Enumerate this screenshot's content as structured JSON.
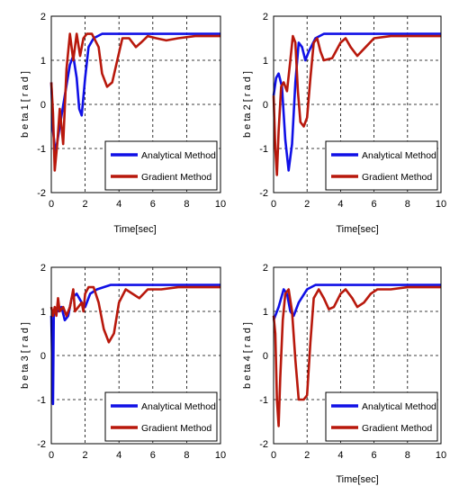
{
  "colors": {
    "analytical": "#1010e6",
    "gradient": "#b8180c",
    "grid": "#000000",
    "background": "#ffffff"
  },
  "legend": [
    "Analytical Method",
    "Gradient Method"
  ],
  "chart_data": [
    {
      "type": "line",
      "xlabel": "Time[sec]",
      "ylabel": "b e ta 1 [ r a d ]",
      "xlim": [
        0,
        10
      ],
      "ylim": [
        -2,
        2
      ],
      "xticks": [
        "0",
        "2",
        "4",
        "6",
        "8",
        "10"
      ],
      "yticks": [
        "2",
        "1",
        "0",
        "-1",
        "-2"
      ],
      "grid": true,
      "legend_placement": "lower-right",
      "series": [
        {
          "name": "Analytical Method",
          "points": [
            [
              0,
              0.5
            ],
            [
              0.1,
              -0.6
            ],
            [
              0.25,
              -1.1
            ],
            [
              0.5,
              -0.5
            ],
            [
              0.8,
              0.2
            ],
            [
              1.1,
              0.9
            ],
            [
              1.3,
              1.1
            ],
            [
              1.5,
              0.6
            ],
            [
              1.65,
              -0.1
            ],
            [
              1.8,
              -0.25
            ],
            [
              2.0,
              0.6
            ],
            [
              2.2,
              1.3
            ],
            [
              2.5,
              1.5
            ],
            [
              3.0,
              1.6
            ],
            [
              4,
              1.6
            ],
            [
              6,
              1.6
            ],
            [
              10,
              1.6
            ]
          ]
        },
        {
          "name": "Gradient Method",
          "points": [
            [
              0,
              0.5
            ],
            [
              0.1,
              -0.2
            ],
            [
              0.2,
              -1.5
            ],
            [
              0.35,
              -0.9
            ],
            [
              0.5,
              -0.1
            ],
            [
              0.7,
              -0.9
            ],
            [
              0.9,
              0.8
            ],
            [
              1.1,
              1.6
            ],
            [
              1.3,
              1.0
            ],
            [
              1.5,
              1.6
            ],
            [
              1.7,
              1.1
            ],
            [
              1.9,
              1.5
            ],
            [
              2.1,
              1.6
            ],
            [
              2.4,
              1.6
            ],
            [
              2.8,
              1.3
            ],
            [
              3.0,
              0.7
            ],
            [
              3.3,
              0.4
            ],
            [
              3.6,
              0.5
            ],
            [
              3.9,
              1.0
            ],
            [
              4.2,
              1.5
            ],
            [
              4.6,
              1.5
            ],
            [
              5.0,
              1.3
            ],
            [
              5.3,
              1.4
            ],
            [
              5.7,
              1.55
            ],
            [
              6.2,
              1.5
            ],
            [
              6.8,
              1.45
            ],
            [
              7.5,
              1.5
            ],
            [
              8.5,
              1.55
            ],
            [
              10,
              1.55
            ]
          ]
        }
      ]
    },
    {
      "type": "line",
      "xlabel": "Time[sec]",
      "ylabel": "b e ta 2 [ r a d ]",
      "xlim": [
        0,
        10
      ],
      "ylim": [
        -2,
        2
      ],
      "xticks": [
        "0",
        "2",
        "4",
        "6",
        "8",
        "10"
      ],
      "yticks": [
        "2",
        "1",
        "0",
        "-1",
        "-2"
      ],
      "grid": true,
      "legend_placement": "lower-right",
      "series": [
        {
          "name": "Analytical Method",
          "points": [
            [
              0,
              0.2
            ],
            [
              0.15,
              0.6
            ],
            [
              0.3,
              0.7
            ],
            [
              0.5,
              0.4
            ],
            [
              0.7,
              -0.8
            ],
            [
              0.9,
              -1.5
            ],
            [
              1.1,
              -0.9
            ],
            [
              1.3,
              0.5
            ],
            [
              1.5,
              1.4
            ],
            [
              1.7,
              1.3
            ],
            [
              1.9,
              1.0
            ],
            [
              2.1,
              1.2
            ],
            [
              2.5,
              1.5
            ],
            [
              3,
              1.6
            ],
            [
              4,
              1.6
            ],
            [
              10,
              1.6
            ]
          ]
        },
        {
          "name": "Gradient Method",
          "points": [
            [
              0,
              0.2
            ],
            [
              0.1,
              -1.0
            ],
            [
              0.2,
              -1.6
            ],
            [
              0.3,
              -0.6
            ],
            [
              0.45,
              0.4
            ],
            [
              0.6,
              0.5
            ],
            [
              0.8,
              0.3
            ],
            [
              1.0,
              1.0
            ],
            [
              1.15,
              1.55
            ],
            [
              1.3,
              1.4
            ],
            [
              1.45,
              0.3
            ],
            [
              1.6,
              -0.4
            ],
            [
              1.8,
              -0.5
            ],
            [
              2.0,
              -0.3
            ],
            [
              2.2,
              0.6
            ],
            [
              2.4,
              1.4
            ],
            [
              2.6,
              1.5
            ],
            [
              2.8,
              1.2
            ],
            [
              3.0,
              1.0
            ],
            [
              3.5,
              1.05
            ],
            [
              4.0,
              1.4
            ],
            [
              4.3,
              1.5
            ],
            [
              4.6,
              1.3
            ],
            [
              5.0,
              1.1
            ],
            [
              5.5,
              1.3
            ],
            [
              6.0,
              1.5
            ],
            [
              7,
              1.55
            ],
            [
              10,
              1.55
            ]
          ]
        }
      ]
    },
    {
      "type": "line",
      "xlabel": "",
      "ylabel": "b e ta 3 [ r a d ]",
      "xlim": [
        0,
        10
      ],
      "ylim": [
        -2,
        2
      ],
      "xticks": [
        "0",
        "2",
        "4",
        "6",
        "8",
        "10"
      ],
      "yticks": [
        "2",
        "1",
        "0",
        "-1",
        "-2"
      ],
      "grid": true,
      "legend_placement": "lower-right",
      "series": [
        {
          "name": "Analytical Method",
          "points": [
            [
              0,
              0.9
            ],
            [
              0.1,
              -1.1
            ],
            [
              0.15,
              1.0
            ],
            [
              0.4,
              1.0
            ],
            [
              0.6,
              1.1
            ],
            [
              0.8,
              0.8
            ],
            [
              1.0,
              0.9
            ],
            [
              1.2,
              1.3
            ],
            [
              1.5,
              1.4
            ],
            [
              1.8,
              1.2
            ],
            [
              2.0,
              1.1
            ],
            [
              2.3,
              1.4
            ],
            [
              2.7,
              1.5
            ],
            [
              3.5,
              1.6
            ],
            [
              10,
              1.6
            ]
          ]
        },
        {
          "name": "Gradient Method",
          "points": [
            [
              0,
              1.1
            ],
            [
              0.1,
              0.9
            ],
            [
              0.2,
              1.1
            ],
            [
              0.3,
              0.9
            ],
            [
              0.4,
              1.3
            ],
            [
              0.5,
              1.0
            ],
            [
              0.7,
              1.1
            ],
            [
              0.9,
              0.9
            ],
            [
              1.1,
              1.1
            ],
            [
              1.3,
              1.5
            ],
            [
              1.4,
              1.0
            ],
            [
              1.6,
              1.1
            ],
            [
              1.8,
              1.2
            ],
            [
              1.9,
              1.0
            ],
            [
              2.0,
              1.4
            ],
            [
              2.2,
              1.55
            ],
            [
              2.5,
              1.55
            ],
            [
              2.8,
              1.2
            ],
            [
              3.1,
              0.6
            ],
            [
              3.4,
              0.3
            ],
            [
              3.7,
              0.5
            ],
            [
              4.0,
              1.2
            ],
            [
              4.4,
              1.5
            ],
            [
              4.8,
              1.4
            ],
            [
              5.2,
              1.3
            ],
            [
              5.7,
              1.5
            ],
            [
              6.5,
              1.5
            ],
            [
              7.5,
              1.55
            ],
            [
              10,
              1.55
            ]
          ]
        }
      ]
    },
    {
      "type": "line",
      "xlabel": "Time[sec]",
      "ylabel": "b e ta 4 [ r a d ]",
      "xlim": [
        0,
        10
      ],
      "ylim": [
        -2,
        2
      ],
      "xticks": [
        "0",
        "2",
        "4",
        "6",
        "8",
        "10"
      ],
      "yticks": [
        "2",
        "1",
        "0",
        "-1",
        "-2"
      ],
      "grid": true,
      "legend_placement": "lower-right",
      "series": [
        {
          "name": "Analytical Method",
          "points": [
            [
              0,
              0.8
            ],
            [
              0.3,
              1.1
            ],
            [
              0.6,
              1.5
            ],
            [
              0.8,
              1.4
            ],
            [
              1.0,
              1.0
            ],
            [
              1.2,
              0.9
            ],
            [
              1.5,
              1.2
            ],
            [
              2.0,
              1.5
            ],
            [
              2.5,
              1.6
            ],
            [
              3,
              1.6
            ],
            [
              10,
              1.6
            ]
          ]
        },
        {
          "name": "Gradient Method",
          "points": [
            [
              0,
              0.9
            ],
            [
              0.1,
              0.5
            ],
            [
              0.2,
              -1.0
            ],
            [
              0.3,
              -1.6
            ],
            [
              0.4,
              -0.5
            ],
            [
              0.55,
              0.8
            ],
            [
              0.7,
              1.4
            ],
            [
              0.9,
              1.5
            ],
            [
              1.1,
              1.0
            ],
            [
              1.3,
              -0.1
            ],
            [
              1.5,
              -1.0
            ],
            [
              1.8,
              -1.0
            ],
            [
              2.0,
              -0.9
            ],
            [
              2.2,
              0.3
            ],
            [
              2.4,
              1.3
            ],
            [
              2.7,
              1.5
            ],
            [
              3.0,
              1.3
            ],
            [
              3.3,
              1.05
            ],
            [
              3.6,
              1.1
            ],
            [
              4.0,
              1.4
            ],
            [
              4.3,
              1.5
            ],
            [
              4.7,
              1.3
            ],
            [
              5.0,
              1.1
            ],
            [
              5.4,
              1.2
            ],
            [
              5.8,
              1.4
            ],
            [
              6.2,
              1.5
            ],
            [
              7,
              1.5
            ],
            [
              8,
              1.55
            ],
            [
              10,
              1.55
            ]
          ]
        }
      ]
    }
  ]
}
